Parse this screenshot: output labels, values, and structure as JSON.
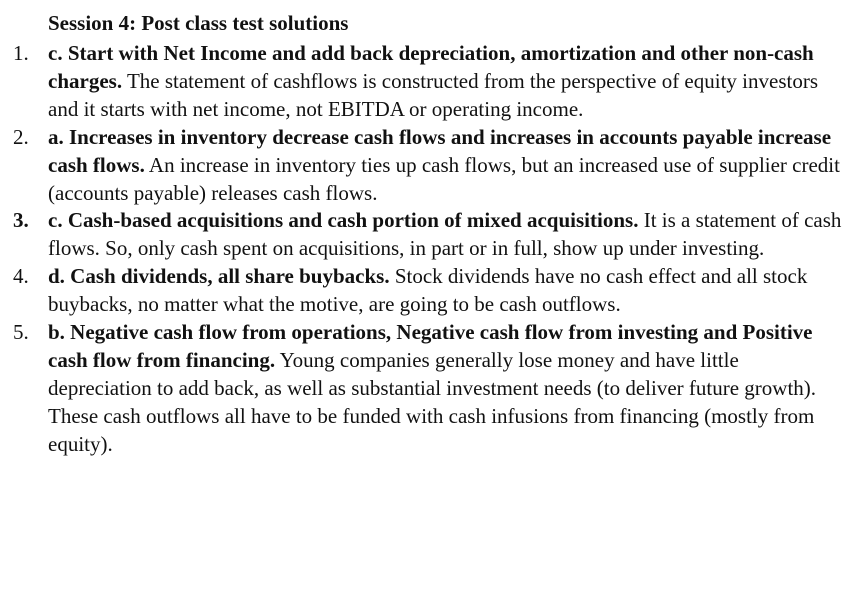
{
  "title": "Session 4: Post class test solutions",
  "answers": [
    {
      "number": "1.",
      "lead": "c. Start with Net Income and add back depreciation, amortization and other non-cash charges.",
      "text": " The statement of cashflows is constructed from the perspective of equity investors and it starts with net income, not EBITDA or operating income."
    },
    {
      "number": "2.",
      "lead": "a. Increases in inventory decrease cash flows and increases in accounts payable increase cash flows.",
      "text": " An increase in inventory ties up cash flows, but an increased use of supplier credit (accounts payable) releases cash flows."
    },
    {
      "number": "3.",
      "lead": "c.  Cash-based acquisitions and cash portion of mixed acquisitions.",
      "text": " It is a statement of cash flows.  So, only cash spent on acquisitions, in part or in full, show up under investing."
    },
    {
      "number": "4.",
      "lead": "d. Cash dividends, all share buybacks.",
      "text": " Stock dividends have no cash effect and all stock buybacks, no matter what the motive, are going to be cash outflows."
    },
    {
      "number": "5.",
      "lead": "b. Negative cash flow from operations, Negative cash flow from investing and Positive cash flow from financing.",
      "text": " Young companies generally lose money and have little depreciation to add back, as well as substantial investment needs (to deliver future growth). These cash outflows all have to be funded with cash infusions from financing (mostly from equity)."
    }
  ]
}
